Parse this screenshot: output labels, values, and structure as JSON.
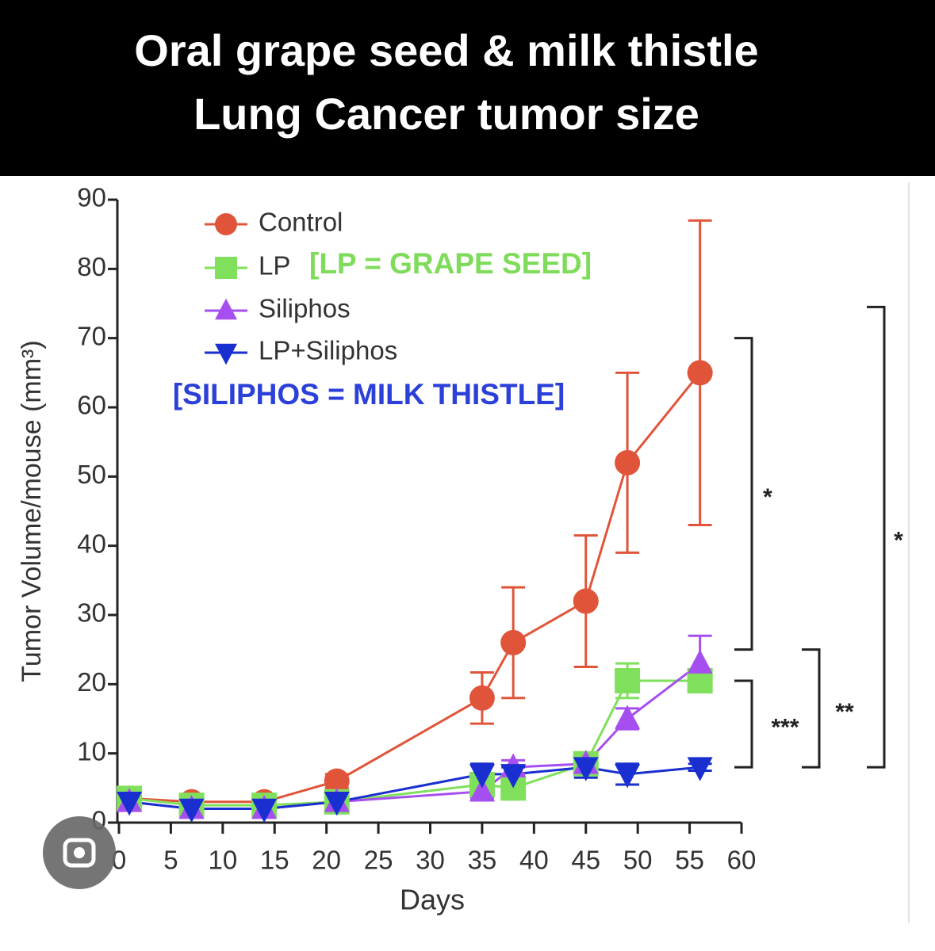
{
  "chart_data": {
    "type": "line",
    "title_lines": [
      "Oral grape seed & milk thistle",
      "Lung Cancer tumor size"
    ],
    "x_label": "Days",
    "y_label": "Tumor Volume/mouse (mm³)",
    "xlim": [
      0,
      60
    ],
    "ylim": [
      0,
      90
    ],
    "xticks": [
      0,
      5,
      10,
      15,
      20,
      25,
      30,
      35,
      40,
      45,
      50,
      55,
      60
    ],
    "yticks": [
      0,
      10,
      20,
      30,
      40,
      50,
      60,
      70,
      80,
      90
    ],
    "x": [
      1,
      7,
      14,
      21,
      35,
      38,
      45,
      49,
      56
    ],
    "series": [
      {
        "name": "Control",
        "color": "#e0553a",
        "marker": "circle",
        "values": [
          3.5,
          3,
          3,
          6,
          18,
          26,
          32,
          52,
          65
        ],
        "errors": [
          1,
          0.5,
          0.5,
          1,
          3.7,
          8,
          9.5,
          13,
          22
        ]
      },
      {
        "name": "LP",
        "color": "#80e05c",
        "marker": "square",
        "values": [
          3.5,
          2.5,
          2.5,
          3,
          5.5,
          5,
          8.5,
          20.5,
          20.5
        ],
        "errors": [
          1.5,
          0.5,
          0.5,
          0.5,
          1,
          1,
          1,
          2.5,
          1.5
        ]
      },
      {
        "name": "Siliphos",
        "color": "#a64ff0",
        "marker": "triangle-up",
        "values": [
          3,
          2,
          2,
          3,
          4.5,
          8,
          8.5,
          15,
          23
        ],
        "errors": [
          0.5,
          0.5,
          0.5,
          0.5,
          1,
          1,
          1,
          1.5,
          4
        ]
      },
      {
        "name": "LP+Siliphos",
        "color": "#1a2fd0",
        "marker": "triangle-down",
        "values": [
          3,
          2,
          2,
          3,
          7,
          7,
          8,
          7,
          8
        ],
        "errors": [
          0.5,
          0.5,
          0.5,
          0.5,
          1.5,
          1,
          1.5,
          1.5,
          0.5
        ]
      }
    ],
    "legend_notes": [
      {
        "text": "[LP = GRAPE SEED]",
        "color": "#7edc5a"
      },
      {
        "text": "[SILIPHOS = MILK THISTLE]",
        "color": "#2b40d8"
      }
    ],
    "significance": [
      {
        "text": "*",
        "range": [
          70,
          25
        ]
      },
      {
        "text": "***",
        "range": [
          20.5,
          8
        ]
      },
      {
        "text": "**",
        "range": [
          25,
          8
        ]
      },
      {
        "text": "*",
        "range": [
          74.5,
          8
        ]
      }
    ]
  }
}
